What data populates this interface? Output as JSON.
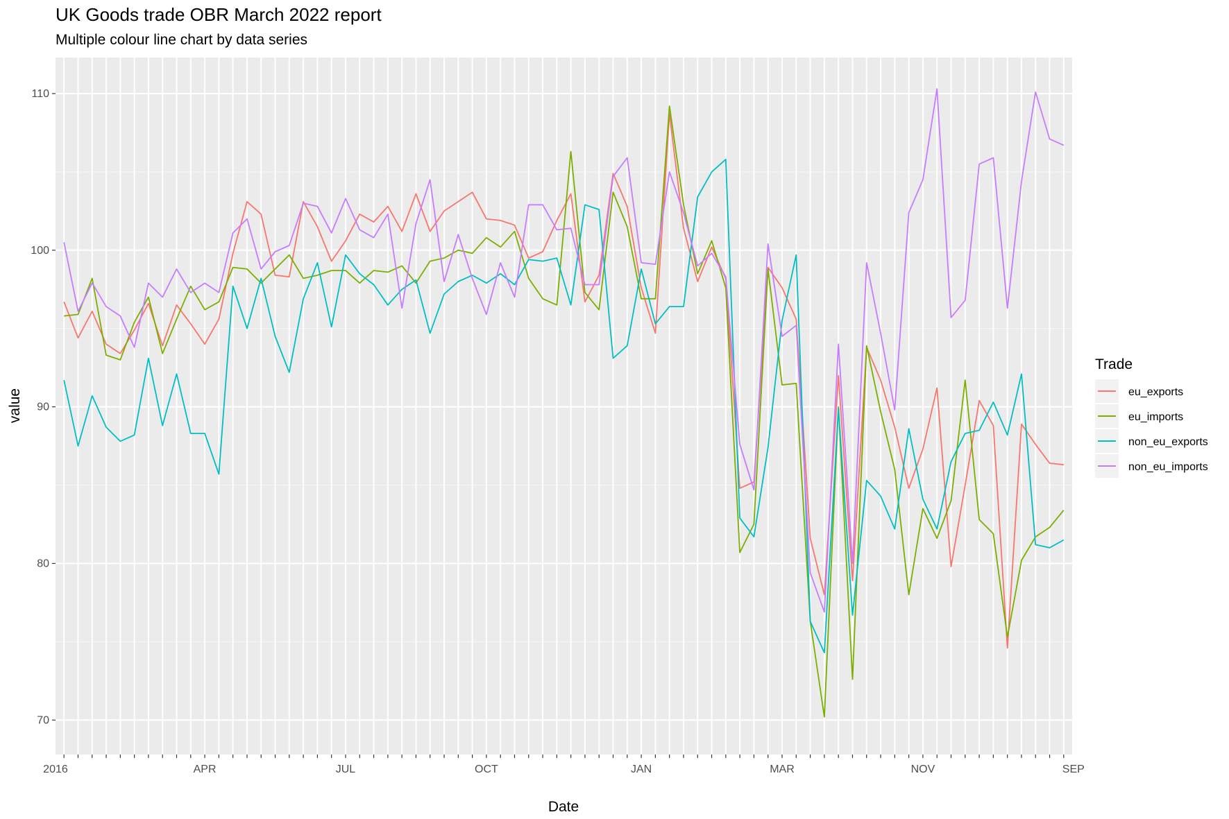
{
  "chart_data": {
    "type": "line",
    "title": "UK Goods trade OBR March 2022 report",
    "subtitle": "Multiple colour line chart by data series",
    "xlabel": "Date",
    "ylabel": "value",
    "ylim": [
      67.8,
      112.3
    ],
    "yticks": [
      70,
      80,
      90,
      100,
      110
    ],
    "grid": true,
    "legend": {
      "title": "Trade",
      "position": "right",
      "entries": [
        "eu_exports",
        "eu_imports",
        "non_eu_exports",
        "non_eu_imports"
      ]
    },
    "x_tick_labels_note": "overlapping",
    "x_tick_labels_visible": [
      "2016",
      "APR",
      "JUL",
      "OCT",
      "JAN",
      "MAR",
      "NOV",
      "SEP"
    ],
    "x": [
      1,
      2,
      3,
      4,
      5,
      6,
      7,
      8,
      9,
      10,
      11,
      12,
      13,
      14,
      15,
      16,
      17,
      18,
      19,
      20,
      21,
      22,
      23,
      24,
      25,
      26,
      27,
      28,
      29,
      30,
      31,
      32,
      33,
      34,
      35,
      36,
      37,
      38,
      39,
      40,
      41,
      42,
      43,
      44,
      45,
      46,
      47,
      48,
      49,
      50,
      51,
      52,
      53,
      54,
      55,
      56,
      57,
      58,
      59,
      60,
      61,
      62,
      63,
      64,
      65,
      66,
      67,
      68,
      69,
      70,
      71,
      72
    ],
    "series": [
      {
        "name": "eu_exports",
        "color": "#F8766D",
        "values": [
          96.7,
          94.4,
          96.1,
          94.0,
          93.4,
          94.9,
          96.6,
          93.9,
          96.5,
          95.3,
          94.0,
          95.6,
          99.8,
          103.1,
          102.3,
          98.4,
          98.3,
          103.1,
          101.5,
          99.3,
          100.6,
          102.3,
          101.8,
          102.8,
          101.2,
          103.6,
          101.2,
          102.5,
          103.1,
          103.7,
          102.0,
          101.9,
          101.6,
          99.5,
          99.9,
          101.9,
          103.6,
          96.7,
          98.4,
          104.9,
          102.8,
          97.6,
          94.7,
          108.7,
          101.4,
          98.0,
          100.2,
          98.2,
          84.8,
          85.2,
          98.9,
          97.6,
          95.6,
          81.6,
          78.0,
          92.0,
          78.9,
          93.8,
          91.7,
          88.7,
          84.8,
          87.3,
          91.2,
          79.8,
          85.0,
          90.4,
          88.8,
          74.6,
          88.9,
          87.6,
          86.4,
          86.3
        ]
      },
      {
        "name": "eu_imports",
        "color": "#7CAE00",
        "values": [
          95.8,
          95.9,
          98.2,
          93.3,
          93.0,
          95.4,
          97.0,
          93.4,
          95.6,
          97.7,
          96.2,
          96.7,
          98.9,
          98.8,
          97.9,
          98.8,
          99.7,
          98.2,
          98.4,
          98.7,
          98.7,
          97.9,
          98.7,
          98.6,
          99.0,
          97.9,
          99.3,
          99.5,
          100.0,
          99.8,
          100.8,
          100.2,
          101.2,
          98.2,
          96.9,
          96.5,
          106.3,
          97.3,
          96.2,
          103.7,
          101.5,
          96.9,
          96.9,
          109.2,
          102.9,
          98.5,
          100.6,
          97.6,
          80.7,
          82.5,
          98.8,
          91.4,
          91.5,
          76.3,
          70.2,
          90.0,
          72.6,
          93.9,
          89.7,
          86.0,
          78.0,
          83.5,
          81.6,
          84.0,
          91.7,
          82.8,
          81.9,
          75.3,
          80.2,
          81.7,
          82.3,
          83.4
        ]
      },
      {
        "name": "non_eu_exports",
        "color": "#00BFC4",
        "values": [
          91.7,
          87.5,
          90.7,
          88.7,
          87.8,
          88.2,
          93.1,
          88.8,
          92.1,
          88.3,
          88.3,
          85.7,
          97.7,
          95.0,
          98.2,
          94.5,
          92.2,
          96.9,
          99.2,
          95.1,
          99.7,
          98.5,
          97.8,
          96.5,
          97.5,
          98.1,
          94.7,
          97.2,
          98.0,
          98.4,
          97.9,
          98.5,
          97.8,
          99.4,
          99.3,
          99.5,
          96.5,
          102.9,
          102.6,
          93.1,
          93.9,
          98.8,
          95.3,
          96.4,
          96.4,
          103.4,
          105.0,
          105.8,
          82.9,
          81.7,
          87.4,
          95.5,
          99.7,
          76.3,
          74.3,
          89.9,
          76.7,
          85.3,
          84.3,
          82.2,
          88.6,
          84.1,
          82.2,
          86.5,
          88.3,
          88.5,
          90.3,
          88.2,
          92.1,
          81.2,
          81.0,
          81.5
        ]
      },
      {
        "name": "non_eu_imports",
        "color": "#C77CFF",
        "values": [
          100.5,
          96.1,
          97.9,
          96.4,
          95.8,
          93.8,
          97.9,
          97.0,
          98.8,
          97.3,
          97.9,
          97.3,
          101.1,
          102.0,
          98.8,
          99.9,
          100.3,
          103.0,
          102.8,
          101.1,
          103.3,
          101.3,
          100.8,
          102.3,
          96.3,
          101.7,
          104.5,
          98.0,
          101.0,
          98.2,
          95.9,
          99.2,
          97.0,
          102.9,
          102.9,
          101.3,
          101.4,
          97.8,
          97.8,
          104.7,
          105.9,
          99.2,
          99.1,
          105.0,
          102.4,
          99.0,
          99.8,
          98.3,
          87.6,
          84.7,
          100.4,
          94.5,
          95.2,
          79.4,
          76.9,
          94.0,
          80.0,
          99.2,
          94.7,
          89.8,
          102.4,
          104.5,
          110.3,
          95.7,
          96.8,
          105.5,
          105.9,
          96.3,
          104.4,
          110.1,
          107.1,
          106.7
        ]
      }
    ]
  }
}
